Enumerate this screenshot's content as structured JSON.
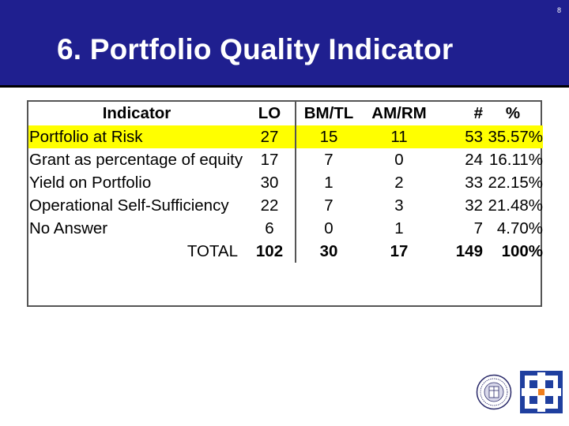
{
  "slide": {
    "page_number": "8",
    "title": "6. Portfolio Quality Indicator"
  },
  "table": {
    "headers": [
      "Indicator",
      "LO",
      "BM/TL",
      "AM/RM",
      "#",
      "%"
    ],
    "rows": [
      {
        "indicator": "Portfolio at Risk",
        "lo": "27",
        "bm": "15",
        "am": "11",
        "num": "53",
        "pct": "35.57%",
        "highlight": true
      },
      {
        "indicator": "Grant as percentage of equity",
        "lo": "17",
        "bm": "7",
        "am": "0",
        "num": "24",
        "pct": "16.11%"
      },
      {
        "indicator": "Yield on Portfolio",
        "lo": "30",
        "bm": "1",
        "am": "2",
        "num": "33",
        "pct": "22.15%"
      },
      {
        "indicator": "Operational Self-Sufficiency",
        "lo": "22",
        "bm": "7",
        "am": "3",
        "num": "32",
        "pct": "21.48%"
      },
      {
        "indicator": "No Answer",
        "lo": "6",
        "bm": "0",
        "am": "1",
        "num": "7",
        "pct": "4.70%"
      }
    ],
    "total": {
      "label": "TOTAL",
      "lo": "102",
      "bm": "30",
      "am": "17",
      "num": "149",
      "pct": "100%"
    }
  },
  "colors": {
    "header_bg": "#1f1f8f",
    "highlight": "#ffff00",
    "logo_blue": "#1f3f9f",
    "logo_orange": "#f07f1f"
  },
  "icons": {
    "seal": "university-seal-icon",
    "logo": "cross-square-logo-icon"
  }
}
